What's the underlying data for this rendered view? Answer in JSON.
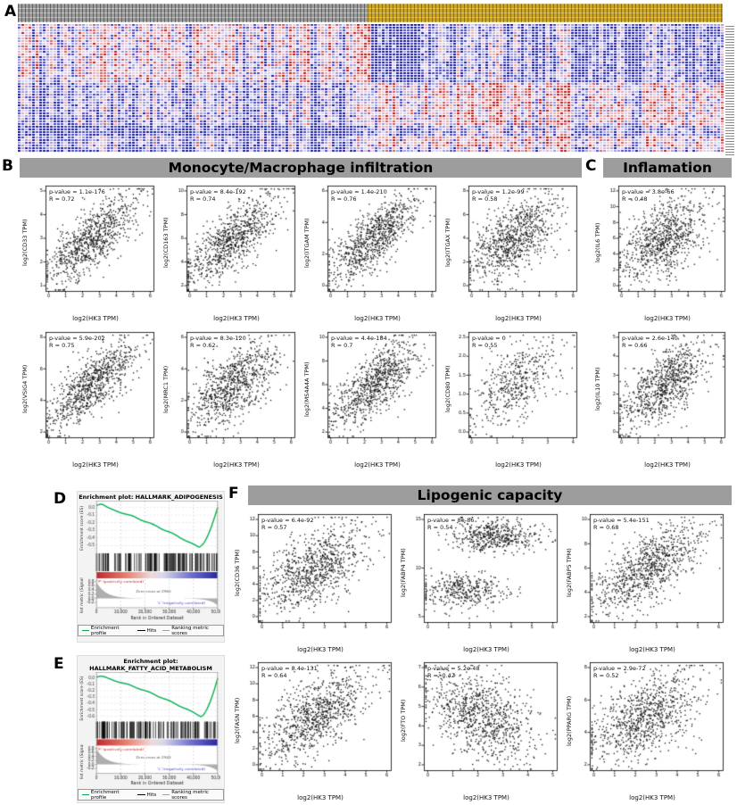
{
  "panels": {
    "A": {
      "label": "A"
    },
    "B": {
      "label": "B",
      "title": "Monocyte/Macrophage infiltration"
    },
    "C": {
      "label": "C",
      "title": "Inflamation"
    },
    "D": {
      "label": "D"
    },
    "E": {
      "label": "E"
    },
    "F": {
      "label": "F",
      "title": "Lipogenic capacity"
    }
  },
  "chart_data": {
    "heatmap": {
      "type": "heatmap",
      "description": "Gene expression heatmap; columns split into two sample groups (gray annotation = left group, gold annotation = right group); blue = low expression, red = high expression",
      "column_annotation_colors": {
        "left_group": "#9a9a9a",
        "right_group": "#c9a41c"
      },
      "low_color": "#2020aa",
      "high_color": "#b82020",
      "blocks": [
        {
          "region": "left-top",
          "tendency": "mixed blue/red"
        },
        {
          "region": "right-top",
          "tendency": "predominantly blue with dark blue block"
        },
        {
          "region": "left-bottom",
          "tendency": "predominantly blue"
        },
        {
          "region": "right-bottom",
          "tendency": "predominantly pink/red"
        }
      ]
    },
    "scatters": {
      "B": [
        {
          "gene": "CD33",
          "p_label": "p-value = 1.1e-176",
          "r_label": "R = 0.72",
          "R": 0.72,
          "ylabel": "log2(CD33 TPM)",
          "xlabel": "log2(HK3 TPM)",
          "xticks": [
            0,
            1,
            2,
            3,
            4,
            5,
            6
          ],
          "yticks": [
            1,
            2,
            3,
            4,
            5
          ],
          "n_points": 850,
          "seed": 11
        },
        {
          "gene": "CD163",
          "p_label": "p-value = 8.4e-192",
          "r_label": "R = 0.74",
          "R": 0.74,
          "ylabel": "log2(CD163 TPM)",
          "xlabel": "log2(HK3 TPM)",
          "xticks": [
            0,
            1,
            2,
            3,
            4,
            5,
            6
          ],
          "yticks": [
            2,
            4,
            6,
            8,
            10
          ],
          "n_points": 850,
          "seed": 12
        },
        {
          "gene": "ITGAM",
          "p_label": "p-value = 1.4e-210",
          "r_label": "R = 0.76",
          "R": 0.76,
          "ylabel": "log2(ITGAM TPM)",
          "xlabel": "log2(HK3 TPM)",
          "xticks": [
            0,
            1,
            2,
            3,
            4,
            5,
            6
          ],
          "yticks": [
            0,
            2,
            4,
            6
          ],
          "n_points": 850,
          "seed": 13
        },
        {
          "gene": "ITGAX",
          "p_label": "p-value = 1.2e-99",
          "r_label": "R = 0.58",
          "R": 0.58,
          "ylabel": "log2(ITGAX TPM)",
          "xlabel": "log2(HK3 TPM)",
          "xticks": [
            0,
            1,
            2,
            3,
            4,
            5,
            6
          ],
          "yticks": [
            0,
            2,
            4,
            6,
            8
          ],
          "n_points": 850,
          "seed": 14
        },
        {
          "gene": "VSIG4",
          "p_label": "p-value = 5.9e-202",
          "r_label": "R = 0.75",
          "R": 0.75,
          "ylabel": "log2(VSIG4 TPM)",
          "xlabel": "log2(HK3 TPM)",
          "xticks": [
            0,
            1,
            2,
            3,
            4,
            5,
            6
          ],
          "yticks": [
            2,
            4,
            6,
            8
          ],
          "n_points": 850,
          "seed": 15
        },
        {
          "gene": "MRC1",
          "p_label": "p-value = 8.3e-120",
          "r_label": "R = 0.62",
          "R": 0.62,
          "ylabel": "log2(MRC1 TPM)",
          "xlabel": "log2(HK3 TPM)",
          "xticks": [
            0,
            1,
            2,
            3,
            4,
            5,
            6
          ],
          "yticks": [
            0,
            2,
            4,
            6
          ],
          "n_points": 850,
          "seed": 16
        },
        {
          "gene": "MS4A4A",
          "p_label": "p-value = 4.4e-184",
          "r_label": "R = 0.7",
          "R": 0.7,
          "ylabel": "log2(MS4A4A TPM)",
          "xlabel": "log2(HK3 TPM)",
          "xticks": [
            0,
            1,
            2,
            3,
            4,
            5,
            6
          ],
          "yticks": [
            2,
            4,
            6,
            8,
            10
          ],
          "n_points": 850,
          "seed": 17
        },
        {
          "gene": "CD80",
          "p_label": "p-value = 0",
          "r_label": "R = 0.55",
          "R": 0.55,
          "ylabel": "log2(CD80 TPM)",
          "xlabel": "log2(HK3 TPM)",
          "xticks": [
            0,
            1,
            2,
            3,
            4
          ],
          "yticks": [
            "0.0",
            "0.5",
            "1.0",
            "1.5",
            "2.0",
            "2.5"
          ],
          "n_points": 480,
          "seed": 18
        }
      ],
      "C": [
        {
          "gene": "IL6",
          "p_label": "p-value = 3.8e-66",
          "r_label": "R = 0.48",
          "R": 0.48,
          "ylabel": "log2(IL6 TPM)",
          "xlabel": "log2(HK3 TPM)",
          "xticks": [
            0,
            1,
            2,
            3,
            4,
            5,
            6
          ],
          "yticks": [
            0,
            2,
            4,
            6,
            8,
            10,
            12
          ],
          "n_points": 850,
          "seed": 21
        },
        {
          "gene": "IL10",
          "p_label": "p-value = 2.6e-140",
          "r_label": "R = 0.66",
          "R": 0.66,
          "ylabel": "log2(IL10 TPM)",
          "xlabel": "log2(HK3 TPM)",
          "xticks": [
            0,
            1,
            2,
            3,
            4,
            5,
            6
          ],
          "yticks": [
            0,
            1,
            2,
            3,
            4,
            5
          ],
          "n_points": 850,
          "seed": 22
        }
      ],
      "F": [
        {
          "gene": "CD36",
          "p_label": "p-value = 6.4e-92",
          "r_label": "R = 0.57",
          "R": 0.57,
          "ylabel": "log2(CD36 TPM)",
          "xlabel": "log2(HK3 TPM)",
          "xticks": [
            0,
            1,
            2,
            3,
            4,
            5,
            6
          ],
          "yticks": [
            0,
            2,
            4,
            6,
            8,
            10,
            12
          ],
          "n_points": 900,
          "seed": 31
        },
        {
          "gene": "FABP4",
          "p_label": "p-value = 8e-86",
          "r_label": "R = 0.54",
          "R": 0.54,
          "bimodal": true,
          "ylabel": "log2(FABP4 TPM)",
          "xlabel": "log2(HK3 TPM)",
          "xticks": [
            0,
            1,
            2,
            3,
            4,
            5,
            6
          ],
          "yticks": [
            5,
            10,
            15
          ],
          "n_points": 900,
          "seed": 32
        },
        {
          "gene": "FABP5",
          "p_label": "p-value = 5.4e-151",
          "r_label": "R = 0.68",
          "R": 0.68,
          "ylabel": "log2(FABP5 TPM)",
          "xlabel": "log2(HK3 TPM)",
          "xticks": [
            0,
            1,
            2,
            3,
            4,
            5,
            6
          ],
          "yticks": [
            2,
            4,
            6,
            8,
            10
          ],
          "n_points": 900,
          "seed": 33
        },
        {
          "gene": "FASN",
          "p_label": "p-value = 8.4e-131",
          "r_label": "R = 0.64",
          "R": 0.64,
          "ylabel": "log2(FASN TPM)",
          "xlabel": "log2(HK3 TPM)",
          "xticks": [
            0,
            1,
            2,
            3,
            4,
            5,
            6
          ],
          "yticks": [
            0,
            2,
            4,
            6,
            8,
            10,
            12
          ],
          "n_points": 900,
          "seed": 34
        },
        {
          "gene": "FTO",
          "p_label": "p-value = 5.2e-48",
          "r_label": "R = -0.42",
          "R": -0.42,
          "ylabel": "log2(FTO TPM)",
          "xlabel": "log2(HK3 TPM)",
          "xticks": [
            0,
            1,
            2,
            3,
            4,
            5
          ],
          "yticks": [
            2,
            3,
            4,
            5,
            6,
            7
          ],
          "n_points": 900,
          "seed": 35
        },
        {
          "gene": "PPARG",
          "p_label": "p-value = 2.9e-72",
          "r_label": "R = 0.52",
          "R": 0.52,
          "ylabel": "log2(PPARG TPM)",
          "xlabel": "log2(HK3 TPM)",
          "xticks": [
            0,
            1,
            2,
            3,
            4,
            5,
            6
          ],
          "yticks": [
            2,
            4,
            6,
            8
          ],
          "n_points": 900,
          "seed": 36
        }
      ]
    },
    "gsea_labels": {
      "es_ylabel": "Enrichment score (ES)",
      "metric_ylabel": "Ranked list metric (Signal2Noise)",
      "xlabel": "Rank in Ordered Dataset",
      "xticks": [
        "0",
        "10,000",
        "20,000",
        "30,000",
        "40,000",
        "50,000"
      ],
      "pos_label": "'P' (positively correlated)",
      "neg_label": "'L' (negatively correlated)",
      "legend_items": [
        {
          "label": "Enrichment profile",
          "color": "#00b050"
        },
        {
          "label": "Hits",
          "color": "#000000"
        },
        {
          "label": "Ranking metric scores",
          "color": "#a0a0a0"
        }
      ]
    },
    "gsea": [
      {
        "id": "D",
        "type": "line",
        "title_line1": "Enrichment plot: HALLMARK_ADIPOGENESIS",
        "title_line2": "",
        "es_min": -0.52,
        "t_min": 0.84,
        "bump": 0.05,
        "seed": 41,
        "es_ticks": [
          "0.0",
          "-0.1",
          "-0.2",
          "-0.3",
          "-0.4",
          "-0.5"
        ],
        "metric_ticks": [
          "0.8",
          "0.6",
          "0.4",
          "0.2",
          "0.0",
          "-0.2"
        ],
        "zero_cross_label": "Zero cross at 2960",
        "curve_color": "#00b050"
      },
      {
        "id": "E",
        "type": "line",
        "title_line1": "Enrichment plot:",
        "title_line2": "HALLMARK_FATTY_ACID_METABOLISM",
        "es_min": -0.6,
        "t_min": 0.86,
        "bump": 0.03,
        "seed": 42,
        "es_ticks": [
          "0.0",
          "-0.1",
          "-0.2",
          "-0.3",
          "-0.4",
          "-0.5",
          "-0.6"
        ],
        "metric_ticks": [
          "0.8",
          "0.6",
          "0.4",
          "0.2",
          "0.0",
          "-0.2"
        ],
        "zero_cross_label": "Zero cross at 2943",
        "curve_color": "#00b050"
      }
    ]
  }
}
